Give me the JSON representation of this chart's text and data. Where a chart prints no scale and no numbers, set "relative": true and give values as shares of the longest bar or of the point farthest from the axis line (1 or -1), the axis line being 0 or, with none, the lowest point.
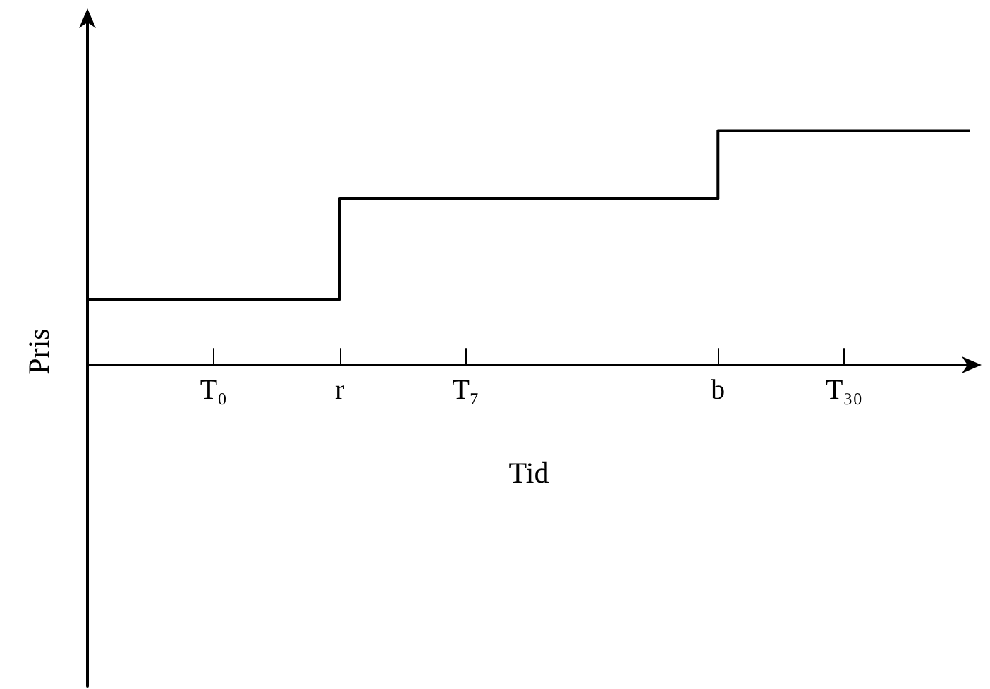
{
  "chart_data": {
    "type": "step",
    "relative": true,
    "xlabel": "Tid",
    "ylabel": "Pris",
    "categories": [
      null,
      "T₀",
      "r",
      "T₇",
      null,
      "b",
      "T₃₀",
      null
    ],
    "series": [
      {
        "color": "#000000",
        "values": [
          0.28,
          0.28,
          0.71,
          0.71,
          0.71,
          1,
          1,
          1
        ]
      }
    ],
    "marker": "none",
    "line_style": "solid"
  }
}
